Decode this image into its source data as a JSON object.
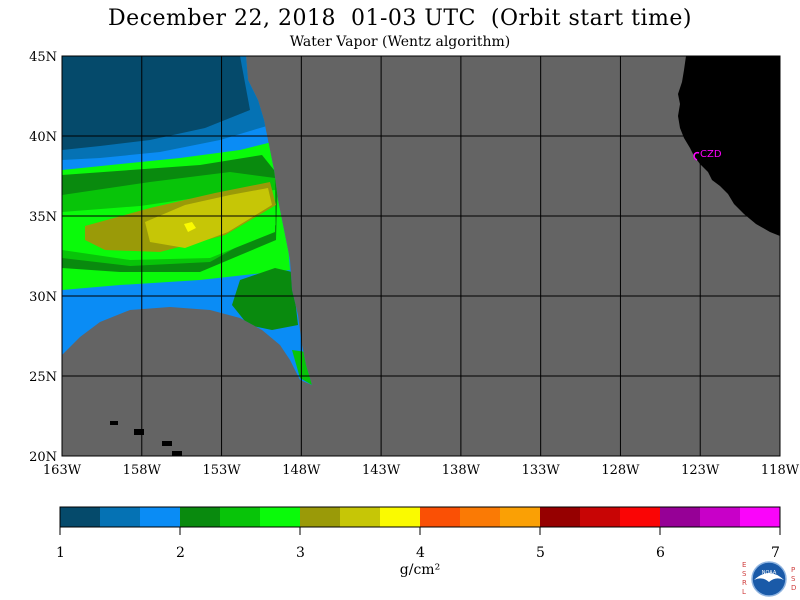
{
  "title": "December 22, 2018  01-03 UTC  (Orbit start time)",
  "subtitle": "Water Vapor (Wentz algorithm)",
  "lat_labels": [
    "45N",
    "40N",
    "35N",
    "30N",
    "25N",
    "20N"
  ],
  "lat_values": [
    45,
    40,
    35,
    30,
    25,
    20
  ],
  "lon_labels": [
    "163W",
    "158W",
    "153W",
    "148W",
    "143W",
    "138W",
    "133W",
    "128W",
    "123W",
    "118W"
  ],
  "lon_values": [
    -163,
    -158,
    -153,
    -148,
    -143,
    -138,
    -133,
    -128,
    -123,
    -118
  ],
  "station_label": "CZD",
  "station": {
    "lat": 38.6,
    "lon": -123.2
  },
  "colorbar": {
    "unit": "g/cm²",
    "tick_labels": [
      "1",
      "2",
      "3",
      "4",
      "5",
      "6",
      "7"
    ],
    "range": [
      1,
      7
    ],
    "colors": [
      "#054a6b",
      "#0572b4",
      "#0a8cf5",
      "#098a0e",
      "#08c409",
      "#0afa0a",
      "#9a9a08",
      "#c6c606",
      "#fafa00",
      "#fa5005",
      "#fa7a05",
      "#faa005",
      "#960000",
      "#c80505",
      "#fa0505",
      "#960096",
      "#c800c8",
      "#fa05fa"
    ]
  },
  "logo": {
    "left_letters": "ESRL",
    "right_letters": "PSD",
    "center": "NOAA"
  },
  "colors": {
    "no_data": "#646464",
    "land": "#000000",
    "grid": "#000000",
    "station": "#ff00ff"
  }
}
